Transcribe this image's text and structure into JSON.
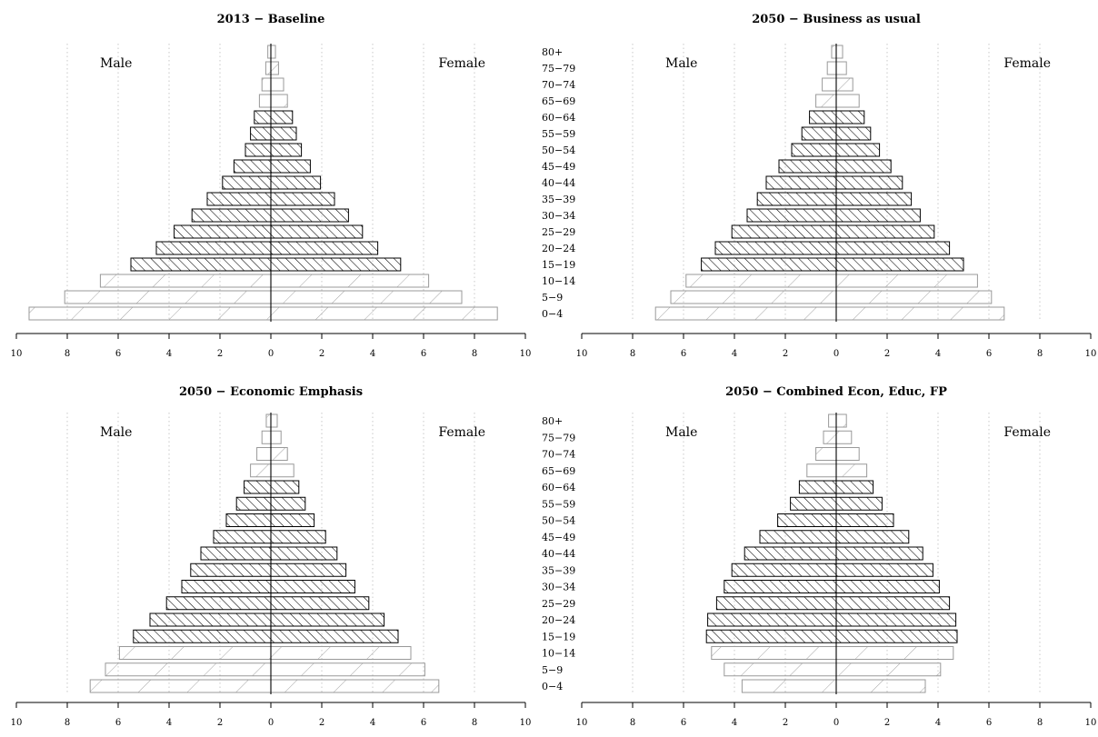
{
  "age_groups": [
    "0−4",
    "5−9",
    "10−14",
    "15−19",
    "20−24",
    "25−29",
    "30−34",
    "35−39",
    "40−44",
    "45−49",
    "50−54",
    "55−59",
    "60−64",
    "65−69",
    "70−74",
    "75−79",
    "80+"
  ],
  "sex_labels": {
    "male": "Male",
    "female": "Female"
  },
  "axis_ticks": [
    "10",
    "8",
    "6",
    "4",
    "2",
    "0",
    "2",
    "4",
    "6",
    "8",
    "10"
  ],
  "colors": {
    "highlight": "#000000",
    "other": "#999999",
    "grid": "#bbbbbb"
  },
  "highlighted_age_groups": [
    "15−19",
    "20−24",
    "25−29",
    "30−34",
    "35−39",
    "40−44",
    "45−49",
    "50−54",
    "55−59",
    "60−64"
  ],
  "chart_data": [
    {
      "type": "bar",
      "orientation": "horizontal-population-pyramid",
      "title": "2013 − Baseline",
      "categories": [
        "0−4",
        "5−9",
        "10−14",
        "15−19",
        "20−24",
        "25−29",
        "30−34",
        "35−39",
        "40−44",
        "45−49",
        "50−54",
        "55−59",
        "60−64",
        "65−69",
        "70−74",
        "75−79",
        "80+"
      ],
      "series": [
        {
          "name": "Male",
          "values": [
            9.5,
            8.1,
            6.7,
            5.5,
            4.5,
            3.8,
            3.1,
            2.5,
            1.9,
            1.45,
            1.0,
            0.8,
            0.65,
            0.45,
            0.35,
            0.2,
            0.12
          ]
        },
        {
          "name": "Female",
          "values": [
            8.9,
            7.5,
            6.2,
            5.1,
            4.2,
            3.6,
            3.05,
            2.5,
            1.95,
            1.55,
            1.2,
            1.0,
            0.85,
            0.65,
            0.5,
            0.3,
            0.18
          ]
        }
      ],
      "xlim": [
        -10,
        10
      ],
      "grid": true,
      "legend": "none"
    },
    {
      "type": "bar",
      "orientation": "horizontal-population-pyramid",
      "title": "2050 − Business as usual",
      "categories": [
        "0−4",
        "5−9",
        "10−14",
        "15−19",
        "20−24",
        "25−29",
        "30−34",
        "35−39",
        "40−44",
        "45−49",
        "50−54",
        "55−59",
        "60−64",
        "65−69",
        "70−74",
        "75−79",
        "80+"
      ],
      "series": [
        {
          "name": "Male",
          "values": [
            7.1,
            6.5,
            5.9,
            5.3,
            4.75,
            4.1,
            3.5,
            3.1,
            2.75,
            2.25,
            1.75,
            1.35,
            1.05,
            0.8,
            0.55,
            0.35,
            0.18
          ]
        },
        {
          "name": "Female",
          "values": [
            6.6,
            6.1,
            5.55,
            5.0,
            4.45,
            3.85,
            3.3,
            2.95,
            2.6,
            2.15,
            1.7,
            1.35,
            1.1,
            0.9,
            0.65,
            0.4,
            0.25
          ]
        }
      ],
      "xlim": [
        -10,
        10
      ],
      "grid": true,
      "legend": "none"
    },
    {
      "type": "bar",
      "orientation": "horizontal-population-pyramid",
      "title": "2050 − Economic Emphasis",
      "categories": [
        "0−4",
        "5−9",
        "10−14",
        "15−19",
        "20−24",
        "25−29",
        "30−34",
        "35−39",
        "40−44",
        "45−49",
        "50−54",
        "55−59",
        "60−64",
        "65−69",
        "70−74",
        "75−79",
        "80+"
      ],
      "series": [
        {
          "name": "Male",
          "values": [
            7.1,
            6.5,
            5.95,
            5.4,
            4.75,
            4.1,
            3.5,
            3.15,
            2.75,
            2.25,
            1.75,
            1.35,
            1.05,
            0.8,
            0.55,
            0.35,
            0.18
          ]
        },
        {
          "name": "Female",
          "values": [
            6.6,
            6.05,
            5.5,
            5.0,
            4.45,
            3.85,
            3.3,
            2.95,
            2.6,
            2.15,
            1.7,
            1.35,
            1.1,
            0.9,
            0.65,
            0.4,
            0.25
          ]
        }
      ],
      "xlim": [
        -10,
        10
      ],
      "grid": true,
      "legend": "none"
    },
    {
      "type": "bar",
      "orientation": "horizontal-population-pyramid",
      "title": "2050 − Combined Econ, Educ, FP",
      "categories": [
        "0−4",
        "5−9",
        "10−14",
        "15−19",
        "20−24",
        "25−29",
        "30−34",
        "35−39",
        "40−44",
        "45−49",
        "50−54",
        "55−59",
        "60−64",
        "65−69",
        "70−74",
        "75−79",
        "80+"
      ],
      "series": [
        {
          "name": "Male",
          "values": [
            3.7,
            4.4,
            4.9,
            5.1,
            5.05,
            4.7,
            4.4,
            4.1,
            3.6,
            3.0,
            2.3,
            1.8,
            1.45,
            1.15,
            0.8,
            0.5,
            0.3
          ]
        },
        {
          "name": "Female",
          "values": [
            3.5,
            4.1,
            4.6,
            4.75,
            4.7,
            4.45,
            4.05,
            3.8,
            3.4,
            2.85,
            2.25,
            1.8,
            1.45,
            1.2,
            0.9,
            0.6,
            0.4
          ]
        }
      ],
      "xlim": [
        -10,
        10
      ],
      "grid": true,
      "legend": "none"
    }
  ]
}
